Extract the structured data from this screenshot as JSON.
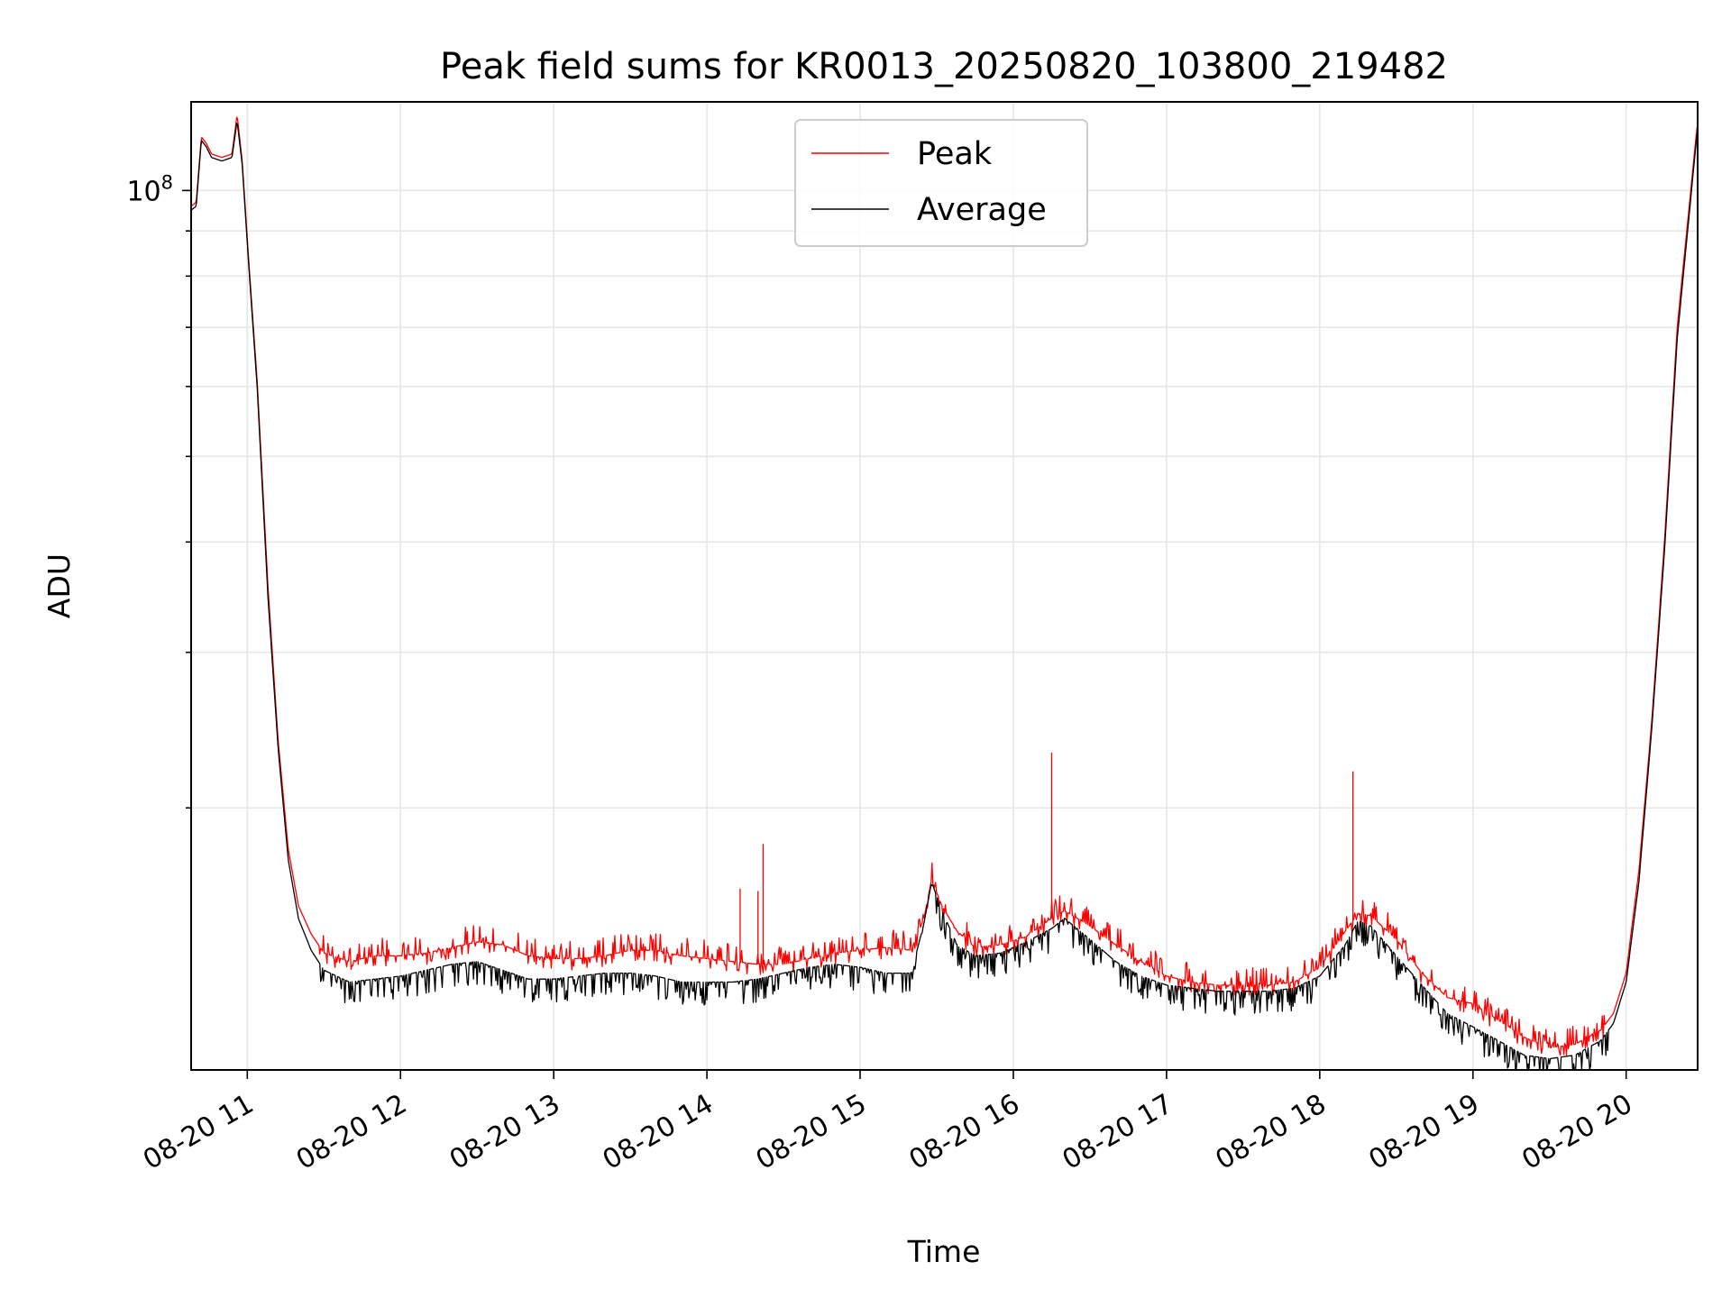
{
  "chart_data": {
    "type": "line",
    "title": "Peak field sums for KR0013_20250820_103800_219482",
    "xlabel": "Time",
    "ylabel": "ADU",
    "yscale": "log",
    "grid": true,
    "legend_position": "upper center",
    "x_range": [
      "2025-08-20 10:38",
      "2025-08-20 20:28"
    ],
    "y_range": [
      10100000,
      126000000
    ],
    "x_ticks": [
      "08-20 11",
      "08-20 12",
      "08-20 13",
      "08-20 14",
      "08-20 15",
      "08-20 16",
      "08-20 17",
      "08-20 18",
      "08-20 19",
      "08-20 20"
    ],
    "y_major_tick_label": {
      "base": "10",
      "exponent": "8"
    },
    "y_tick_values": [
      100000000,
      90000000,
      80000000,
      70000000,
      60000000,
      50000000,
      40000000,
      30000000,
      20000000
    ],
    "series": [
      {
        "name": "Peak",
        "color": "#ff0000",
        "x": [
          "10:38",
          "10:40",
          "10:42",
          "10:44",
          "10:46",
          "10:50",
          "10:54",
          "10:56",
          "10:58",
          "11:00",
          "11:04",
          "11:08",
          "11:12",
          "11:16",
          "11:20",
          "11:25",
          "11:30",
          "11:40",
          "11:50",
          "12:00",
          "12:10",
          "12:20",
          "12:30",
          "12:40",
          "12:50",
          "13:00",
          "13:10",
          "13:20",
          "13:30",
          "13:40",
          "13:50",
          "14:00",
          "14:10",
          "14:20",
          "14:30",
          "14:40",
          "14:50",
          "15:00",
          "15:10",
          "15:20",
          "15:25",
          "15:28",
          "15:32",
          "15:38",
          "15:45",
          "15:55",
          "16:05",
          "16:15",
          "16:20",
          "16:30",
          "16:40",
          "16:50",
          "17:00",
          "17:10",
          "17:20",
          "17:30",
          "17:40",
          "17:50",
          "18:00",
          "18:10",
          "18:15",
          "18:20",
          "18:30",
          "18:40",
          "18:50",
          "19:00",
          "19:10",
          "19:20",
          "19:30",
          "19:40",
          "19:45",
          "19:50",
          "19:55",
          "20:00",
          "20:05",
          "20:10",
          "20:15",
          "20:20",
          "20:28"
        ],
        "y": [
          96000000,
          97000000,
          115000000,
          113000000,
          110000000,
          109000000,
          110000000,
          122000000,
          108000000,
          88000000,
          60000000,
          36000000,
          24000000,
          18000000,
          15500000,
          14400000,
          13700000,
          13400000,
          13600000,
          13600000,
          13700000,
          13900000,
          14100000,
          14000000,
          13600000,
          13500000,
          13500000,
          13600000,
          13800000,
          13800000,
          13600000,
          13500000,
          13400000,
          13300000,
          13300000,
          13500000,
          13700000,
          13800000,
          13900000,
          13800000,
          15000000,
          16600000,
          15500000,
          14500000,
          13900000,
          14000000,
          14300000,
          15000000,
          15300000,
          14700000,
          14000000,
          13400000,
          12900000,
          12700000,
          12600000,
          12600000,
          12600000,
          12700000,
          13200000,
          14500000,
          15200000,
          15100000,
          14200000,
          13000000,
          12200000,
          12000000,
          11500000,
          11000000,
          10700000,
          10800000,
          11000000,
          11200000,
          11700000,
          13000000,
          17000000,
          25000000,
          40000000,
          70000000,
          120000000
        ],
        "spikes": [
          {
            "x": "14:13",
            "y": 16200000
          },
          {
            "x": "14:20",
            "y": 16100000
          },
          {
            "x": "14:22",
            "y": 18200000
          },
          {
            "x": "16:15",
            "y": 23100000
          },
          {
            "x": "18:13",
            "y": 22000000
          }
        ]
      },
      {
        "name": "Average",
        "color": "#000000",
        "x": [
          "10:38",
          "10:40",
          "10:42",
          "10:44",
          "10:46",
          "10:50",
          "10:54",
          "10:56",
          "10:58",
          "11:00",
          "11:04",
          "11:08",
          "11:12",
          "11:16",
          "11:20",
          "11:25",
          "11:30",
          "11:40",
          "11:50",
          "12:00",
          "12:10",
          "12:20",
          "12:30",
          "12:40",
          "12:50",
          "13:00",
          "13:10",
          "13:20",
          "13:30",
          "13:40",
          "13:50",
          "14:00",
          "14:10",
          "14:20",
          "14:30",
          "14:40",
          "14:50",
          "15:00",
          "15:10",
          "15:20",
          "15:25",
          "15:28",
          "15:32",
          "15:38",
          "15:45",
          "15:55",
          "16:05",
          "16:15",
          "16:20",
          "16:30",
          "16:40",
          "16:50",
          "17:00",
          "17:10",
          "17:20",
          "17:30",
          "17:40",
          "17:50",
          "18:00",
          "18:10",
          "18:15",
          "18:20",
          "18:30",
          "18:40",
          "18:50",
          "19:00",
          "19:10",
          "19:20",
          "19:30",
          "19:40",
          "19:45",
          "19:50",
          "19:55",
          "20:00",
          "20:05",
          "20:10",
          "20:15",
          "20:20",
          "20:28"
        ],
        "y": [
          95000000,
          96000000,
          114000000,
          112000000,
          109000000,
          108000000,
          109000000,
          120000000,
          107000000,
          87000000,
          59000000,
          35000000,
          23500000,
          17500000,
          15000000,
          13800000,
          13100000,
          12700000,
          12800000,
          12900000,
          13100000,
          13300000,
          13400000,
          13100000,
          12800000,
          12800000,
          12900000,
          13000000,
          13000000,
          12900000,
          12700000,
          12700000,
          12700000,
          12800000,
          13000000,
          13200000,
          13300000,
          13200000,
          13000000,
          13000000,
          14800000,
          16500000,
          15300000,
          14000000,
          13600000,
          13700000,
          14100000,
          14600000,
          15000000,
          14200000,
          13400000,
          12900000,
          12600000,
          12500000,
          12400000,
          12400000,
          12400000,
          12500000,
          12900000,
          14000000,
          14900000,
          14700000,
          13600000,
          12600000,
          11700000,
          11300000,
          10900000,
          10500000,
          10400000,
          10500000,
          10700000,
          10900000,
          11400000,
          12700000,
          16500000,
          24500000,
          39000000,
          68000000,
          118000000
        ]
      }
    ]
  }
}
